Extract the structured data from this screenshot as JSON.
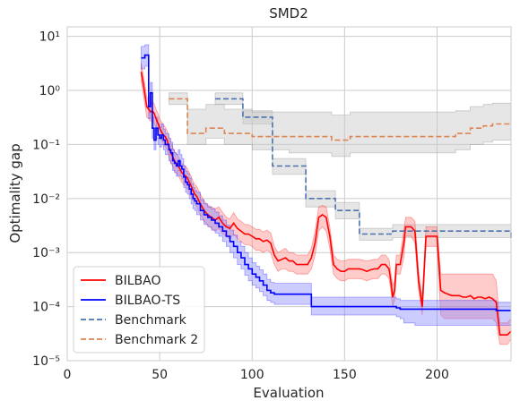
{
  "chart_data": {
    "type": "line",
    "title": "SMD2",
    "xlabel": "Evaluation",
    "ylabel": "Optimality gap",
    "yscale": "log",
    "xlim": [
      0,
      240
    ],
    "ylim": [
      1e-05,
      15
    ],
    "xticks": [
      0,
      50,
      100,
      150,
      200
    ],
    "yticks": [
      {
        "value": 1e-05,
        "label": "10⁻⁵"
      },
      {
        "value": 0.0001,
        "label": "10⁻⁴"
      },
      {
        "value": 0.001,
        "label": "10⁻³"
      },
      {
        "value": 0.01,
        "label": "10⁻²"
      },
      {
        "value": 0.1,
        "label": "10⁻¹"
      },
      {
        "value": 1,
        "label": "10⁰"
      },
      {
        "value": 10,
        "label": "10¹"
      }
    ],
    "grid": true,
    "legend": "lower-left",
    "series": [
      {
        "name": "BILBAO",
        "color": "#ff0000",
        "band_color": "#ff7f7f",
        "style": "solid",
        "step": false,
        "x": [
          40,
          41,
          42,
          43,
          44,
          45,
          46,
          47,
          48,
          49,
          50,
          51,
          52,
          53,
          54,
          55,
          56,
          57,
          58,
          59,
          60,
          61,
          62,
          63,
          64,
          65,
          66,
          67,
          68,
          69,
          70,
          72,
          74,
          76,
          78,
          80,
          82,
          84,
          86,
          88,
          90,
          92,
          94,
          96,
          98,
          100,
          102,
          104,
          106,
          108,
          110,
          112,
          114,
          116,
          118,
          120,
          122,
          124,
          126,
          128,
          130,
          132,
          134,
          136,
          138,
          140,
          142,
          144,
          146,
          148,
          150,
          152,
          154,
          156,
          158,
          160,
          162,
          164,
          166,
          168,
          170,
          172,
          174,
          175,
          176,
          177,
          178,
          180,
          182,
          183,
          184,
          186,
          188,
          190,
          192,
          194,
          196,
          198,
          200,
          202,
          204,
          206,
          208,
          210,
          212,
          214,
          216,
          218,
          220,
          222,
          224,
          226,
          228,
          230,
          232,
          234,
          236,
          238,
          240
        ],
        "y": [
          2.2,
          1.4,
          0.85,
          0.5,
          0.45,
          0.4,
          0.42,
          0.38,
          0.3,
          0.25,
          0.2,
          0.17,
          0.15,
          0.14,
          0.12,
          0.09,
          0.07,
          0.06,
          0.05,
          0.045,
          0.04,
          0.035,
          0.03,
          0.028,
          0.026,
          0.024,
          0.02,
          0.017,
          0.014,
          0.012,
          0.011,
          0.008,
          0.006,
          0.005,
          0.0045,
          0.004,
          0.0045,
          0.0035,
          0.003,
          0.0028,
          0.0035,
          0.0028,
          0.0025,
          0.0022,
          0.0022,
          0.002,
          0.0018,
          0.0018,
          0.0016,
          0.0017,
          0.0015,
          0.0009,
          0.0007,
          0.00075,
          0.0008,
          0.0007,
          0.0007,
          0.0006,
          0.0006,
          0.0006,
          0.0006,
          0.0008,
          0.0015,
          0.0045,
          0.005,
          0.0045,
          0.002,
          0.0006,
          0.0005,
          0.00045,
          0.00045,
          0.0005,
          0.0005,
          0.0005,
          0.0005,
          0.00048,
          0.00045,
          0.00048,
          0.0005,
          0.0005,
          0.0006,
          0.0006,
          0.0005,
          0.0003,
          0.00015,
          0.0002,
          0.0006,
          0.0006,
          0.0015,
          0.003,
          0.003,
          0.003,
          0.0025,
          0.0003,
          0.0001,
          0.002,
          0.002,
          0.002,
          0.002,
          0.0002,
          0.00018,
          0.00017,
          0.00016,
          0.00016,
          0.00016,
          0.00015,
          0.00015,
          0.00016,
          0.00014,
          0.00015,
          0.00015,
          0.00014,
          0.00015,
          0.00014,
          0.00012,
          3e-05,
          3e-05,
          3e-05,
          3.5e-05
        ],
        "lower": [
          1.5,
          0.9,
          0.55,
          0.32,
          0.3,
          0.27,
          0.28,
          0.25,
          0.2,
          0.17,
          0.14,
          0.12,
          0.1,
          0.09,
          0.08,
          0.06,
          0.045,
          0.04,
          0.033,
          0.03,
          0.027,
          0.023,
          0.02,
          0.018,
          0.017,
          0.015,
          0.013,
          0.011,
          0.009,
          0.008,
          0.007,
          0.005,
          0.0038,
          0.0032,
          0.0028,
          0.0025,
          0.0028,
          0.0022,
          0.002,
          0.0018,
          0.0022,
          0.0018,
          0.0016,
          0.0014,
          0.0014,
          0.0013,
          0.0011,
          0.0011,
          0.001,
          0.0011,
          0.001,
          0.0006,
          0.00045,
          0.0005,
          0.0005,
          0.00045,
          0.00045,
          0.0004,
          0.0004,
          0.0004,
          0.0004,
          0.0005,
          0.0009,
          0.0025,
          0.003,
          0.0025,
          0.0012,
          0.0004,
          0.00033,
          0.0003,
          0.0003,
          0.00033,
          0.00033,
          0.00033,
          0.00033,
          0.00032,
          0.0003,
          0.00032,
          0.00033,
          0.00033,
          0.0004,
          0.0004,
          0.00033,
          0.0002,
          0.0001,
          0.00013,
          0.0004,
          0.0004,
          0.0008,
          0.002,
          0.002,
          0.002,
          0.0015,
          0.0002,
          7e-05,
          0.0013,
          0.0013,
          0.0013,
          0.0013,
          7e-05,
          6e-05,
          6e-05,
          6e-05,
          6e-05,
          6e-05,
          6e-05,
          6e-05,
          6e-05,
          6e-05,
          6e-05,
          6e-05,
          6e-05,
          6e-05,
          6e-05,
          5e-05,
          2e-05,
          2e-05,
          2e-05,
          2.5e-05
        ],
        "upper": [
          3.2,
          2.1,
          1.3,
          0.75,
          0.68,
          0.6,
          0.63,
          0.57,
          0.45,
          0.38,
          0.3,
          0.26,
          0.23,
          0.21,
          0.18,
          0.14,
          0.11,
          0.09,
          0.075,
          0.068,
          0.06,
          0.053,
          0.045,
          0.042,
          0.039,
          0.036,
          0.03,
          0.026,
          0.021,
          0.018,
          0.017,
          0.012,
          0.009,
          0.0075,
          0.007,
          0.0065,
          0.007,
          0.0055,
          0.0045,
          0.0042,
          0.0055,
          0.0042,
          0.0038,
          0.0033,
          0.0033,
          0.003,
          0.0027,
          0.0027,
          0.0024,
          0.0026,
          0.0023,
          0.0013,
          0.001,
          0.0011,
          0.0012,
          0.001,
          0.001,
          0.0009,
          0.0009,
          0.0009,
          0.0009,
          0.0012,
          0.0025,
          0.007,
          0.0075,
          0.007,
          0.003,
          0.0009,
          0.00075,
          0.0007,
          0.0007,
          0.00075,
          0.00075,
          0.00075,
          0.00075,
          0.00072,
          0.0007,
          0.00072,
          0.00075,
          0.00075,
          0.0009,
          0.0009,
          0.00075,
          0.00045,
          0.00025,
          0.0003,
          0.0009,
          0.0009,
          0.0025,
          0.0045,
          0.0045,
          0.0045,
          0.0038,
          0.00045,
          0.00015,
          0.003,
          0.003,
          0.003,
          0.003,
          0.0004,
          0.0004,
          0.0004,
          0.0004,
          0.0004,
          0.0004,
          0.0004,
          0.0004,
          0.0004,
          0.0004,
          0.0004,
          0.0004,
          0.0004,
          0.0004,
          0.0004,
          0.0003,
          5e-05,
          5e-05,
          5e-05,
          6e-05
        ]
      },
      {
        "name": "BILBAO-TS",
        "color": "#0000ff",
        "band_color": "#7f7fff",
        "style": "solid",
        "step": true,
        "x": [
          40,
          41,
          42,
          43,
          44,
          45,
          46,
          47,
          48,
          49,
          50,
          51,
          52,
          53,
          54,
          55,
          56,
          57,
          58,
          59,
          60,
          61,
          62,
          63,
          64,
          65,
          66,
          67,
          68,
          69,
          70,
          72,
          74,
          76,
          78,
          80,
          82,
          84,
          86,
          88,
          90,
          92,
          94,
          96,
          98,
          100,
          102,
          104,
          106,
          108,
          110,
          112,
          114,
          116,
          118,
          120,
          122,
          124,
          126,
          128,
          130,
          132,
          134,
          136,
          138,
          140,
          142,
          144,
          146,
          148,
          150,
          152,
          154,
          156,
          158,
          160,
          162,
          164,
          166,
          168,
          170,
          172,
          174,
          176,
          178,
          180,
          182,
          184,
          186,
          188,
          190,
          192,
          194,
          196,
          198,
          200,
          202,
          204,
          206,
          208,
          210,
          212,
          214,
          216,
          218,
          220,
          222,
          224,
          226,
          228,
          230,
          232,
          234,
          236,
          238,
          240
        ],
        "y": [
          4.0,
          4.0,
          4.5,
          4.5,
          0.5,
          0.9,
          0.2,
          0.12,
          0.2,
          0.15,
          0.13,
          0.15,
          0.12,
          0.1,
          0.1,
          0.08,
          0.07,
          0.05,
          0.045,
          0.04,
          0.05,
          0.04,
          0.035,
          0.025,
          0.02,
          0.018,
          0.015,
          0.012,
          0.01,
          0.009,
          0.008,
          0.006,
          0.005,
          0.0045,
          0.004,
          0.0035,
          0.003,
          0.0025,
          0.002,
          0.0016,
          0.0013,
          0.001,
          0.0008,
          0.0006,
          0.0005,
          0.0004,
          0.00035,
          0.0003,
          0.00025,
          0.0002,
          0.00018,
          0.00017,
          0.00017,
          0.00017,
          0.00017,
          0.00017,
          0.00017,
          0.00017,
          0.00017,
          0.00017,
          0.00017,
          0.0001,
          0.0001,
          0.0001,
          0.0001,
          0.0001,
          0.0001,
          0.0001,
          0.0001,
          0.0001,
          0.0001,
          0.0001,
          0.0001,
          0.0001,
          0.0001,
          0.0001,
          0.0001,
          0.0001,
          0.0001,
          0.0001,
          0.0001,
          0.0001,
          0.0001,
          0.0001,
          9.5e-05,
          9e-05,
          9e-05,
          9e-05,
          9e-05,
          9e-05,
          9e-05,
          9e-05,
          9e-05,
          9e-05,
          9e-05,
          9e-05,
          9e-05,
          9e-05,
          9e-05,
          9e-05,
          9e-05,
          9e-05,
          9e-05,
          9e-05,
          9e-05,
          9e-05,
          9e-05,
          9e-05,
          9e-05,
          9e-05,
          9e-05,
          8.5e-05,
          8.5e-05,
          8.5e-05,
          8.5e-05,
          8.5e-05
        ],
        "lower": [
          2.5,
          2.5,
          2.8,
          2.8,
          0.3,
          0.55,
          0.13,
          0.08,
          0.13,
          0.1,
          0.09,
          0.1,
          0.08,
          0.065,
          0.065,
          0.05,
          0.045,
          0.033,
          0.03,
          0.026,
          0.033,
          0.026,
          0.023,
          0.016,
          0.013,
          0.012,
          0.01,
          0.008,
          0.0065,
          0.006,
          0.005,
          0.004,
          0.0033,
          0.003,
          0.0026,
          0.0023,
          0.002,
          0.0016,
          0.0013,
          0.001,
          0.0008,
          0.0006,
          0.0005,
          0.00038,
          0.0003,
          0.00025,
          0.00022,
          0.00019,
          0.00016,
          0.00013,
          0.00012,
          0.00011,
          0.00011,
          0.00011,
          0.00011,
          0.00011,
          0.00011,
          0.00011,
          0.00011,
          0.00011,
          0.00011,
          7e-05,
          7e-05,
          7e-05,
          7e-05,
          7e-05,
          7e-05,
          7e-05,
          7e-05,
          7e-05,
          7e-05,
          7e-05,
          7e-05,
          7e-05,
          7e-05,
          7e-05,
          7e-05,
          7e-05,
          7e-05,
          7e-05,
          7e-05,
          7e-05,
          7e-05,
          7e-05,
          6.5e-05,
          6e-05,
          5e-05,
          5e-05,
          5e-05,
          4.5e-05,
          4.5e-05,
          4.5e-05,
          4.5e-05,
          4.5e-05,
          4.5e-05,
          4.5e-05,
          4.5e-05,
          4.5e-05,
          4.5e-05,
          4.5e-05,
          4.5e-05,
          4.5e-05,
          4.5e-05,
          4.5e-05,
          4.5e-05,
          4.5e-05,
          4.5e-05,
          4.5e-05,
          4.5e-05,
          4.5e-05,
          4.5e-05,
          4.5e-05,
          4.5e-05,
          4.5e-05,
          4.5e-05,
          4.5e-05
        ],
        "upper": [
          6.5,
          6.5,
          7.0,
          7.0,
          0.8,
          1.4,
          0.32,
          0.2,
          0.32,
          0.24,
          0.21,
          0.24,
          0.19,
          0.16,
          0.16,
          0.13,
          0.11,
          0.08,
          0.07,
          0.065,
          0.08,
          0.065,
          0.055,
          0.04,
          0.032,
          0.029,
          0.024,
          0.019,
          0.016,
          0.014,
          0.013,
          0.0095,
          0.008,
          0.007,
          0.0064,
          0.0056,
          0.0048,
          0.004,
          0.0032,
          0.0026,
          0.0021,
          0.0016,
          0.0013,
          0.001,
          0.0008,
          0.00065,
          0.00056,
          0.00048,
          0.0004,
          0.00032,
          0.00028,
          0.00027,
          0.00027,
          0.00027,
          0.00027,
          0.00027,
          0.00027,
          0.00027,
          0.00027,
          0.00027,
          0.00027,
          0.00015,
          0.00015,
          0.00015,
          0.00015,
          0.00015,
          0.00015,
          0.00015,
          0.00015,
          0.00015,
          0.00015,
          0.00015,
          0.00015,
          0.00015,
          0.00015,
          0.00015,
          0.00015,
          0.00015,
          0.00015,
          0.00015,
          0.00015,
          0.00015,
          0.00015,
          0.00015,
          0.00014,
          0.00013,
          0.00013,
          0.00013,
          0.00013,
          0.00013,
          0.00013,
          0.00013,
          0.00013,
          0.00013,
          0.00013,
          0.00013,
          0.00013,
          0.00013,
          0.00013,
          0.00013,
          0.00013,
          0.00013,
          0.00013,
          0.00013,
          0.00013,
          0.00013,
          0.00013,
          0.00013,
          0.00013,
          0.00013,
          0.00013,
          0.00012,
          0.00012,
          0.00012,
          0.00012,
          0.00012
        ]
      },
      {
        "name": "Benchmark",
        "color": "#4c72b0",
        "band_color": "#c8c8c8",
        "style": "dashed",
        "step": true,
        "x": [
          80,
          95,
          111,
          129,
          145,
          158,
          176,
          240
        ],
        "y": [
          0.7,
          0.32,
          0.04,
          0.01,
          0.006,
          0.0022,
          0.0025,
          0.0018
        ],
        "lower": [
          0.55,
          0.24,
          0.028,
          0.007,
          0.0042,
          0.0017,
          0.0019,
          0.0014
        ],
        "upper": [
          0.9,
          0.42,
          0.055,
          0.014,
          0.0085,
          0.0028,
          0.0033,
          0.0024
        ]
      },
      {
        "name": "Benchmark 2",
        "color": "#dd8452",
        "band_color": "#c8c8c8",
        "style": "dashed",
        "step": true,
        "x": [
          55,
          65,
          75,
          85,
          100,
          120,
          143,
          153,
          205,
          210,
          218,
          225,
          230,
          235,
          240
        ],
        "y": [
          0.7,
          0.16,
          0.2,
          0.16,
          0.14,
          0.14,
          0.12,
          0.14,
          0.14,
          0.16,
          0.2,
          0.22,
          0.24,
          0.24,
          0.24
        ],
        "lower": [
          0.55,
          0.1,
          0.13,
          0.1,
          0.08,
          0.07,
          0.06,
          0.07,
          0.07,
          0.08,
          0.1,
          0.11,
          0.12,
          0.12,
          0.12
        ],
        "upper": [
          0.9,
          0.45,
          0.55,
          0.45,
          0.4,
          0.4,
          0.35,
          0.4,
          0.4,
          0.42,
          0.5,
          0.55,
          0.58,
          0.58,
          0.58
        ]
      }
    ]
  }
}
